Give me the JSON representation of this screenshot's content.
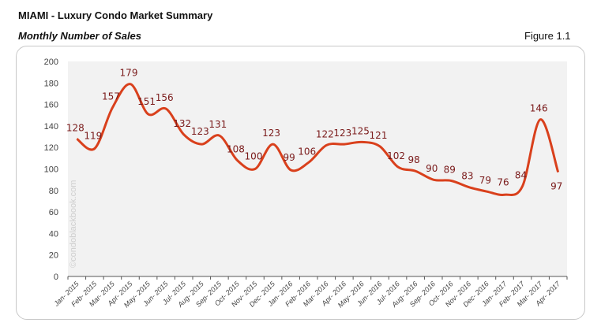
{
  "header": {
    "title": "MIAMI - Luxury Condo Market Summary",
    "subtitle": "Monthly Number of Sales",
    "figure": "Figure 1.1"
  },
  "watermark": "©condoblackbook.com",
  "chart_data": {
    "type": "line",
    "title": "Monthly Number of Sales",
    "categories": [
      "Jan- 2015",
      "Feb- 2015",
      "Mar- 2015",
      "Apr- 2015",
      "May- 2015",
      "Jun- 2015",
      "Jul- 2015",
      "Aug- 2015",
      "Sep- 2015",
      "Oct- 2015",
      "Nov- 2015",
      "Dec- 2015",
      "Jan- 2016",
      "Feb- 2016",
      "Mar- 2016",
      "Apr- 2016",
      "May- 2016",
      "Jun- 2016",
      "Jul- 2016",
      "Aug- 2016",
      "Sep- 2016",
      "Oct- 2016",
      "Nov- 2016",
      "Dec- 2016",
      "Jan- 2017",
      "Feb- 2017",
      "Mar- 2017",
      "Apr- 2017"
    ],
    "values": [
      128,
      119,
      157,
      179,
      151,
      156,
      132,
      123,
      131,
      108,
      100,
      123,
      99,
      106,
      122,
      123,
      125,
      121,
      102,
      98,
      90,
      89,
      83,
      79,
      76,
      84,
      146,
      97
    ],
    "ylim": [
      0,
      200
    ],
    "yticks": [
      0,
      20,
      40,
      60,
      80,
      100,
      120,
      140,
      160,
      180,
      200
    ],
    "grid": false,
    "smooth": true,
    "line_color": "#d9401c",
    "label_color": "#7a1a1a",
    "plot_bg": "#f2f2f2"
  }
}
